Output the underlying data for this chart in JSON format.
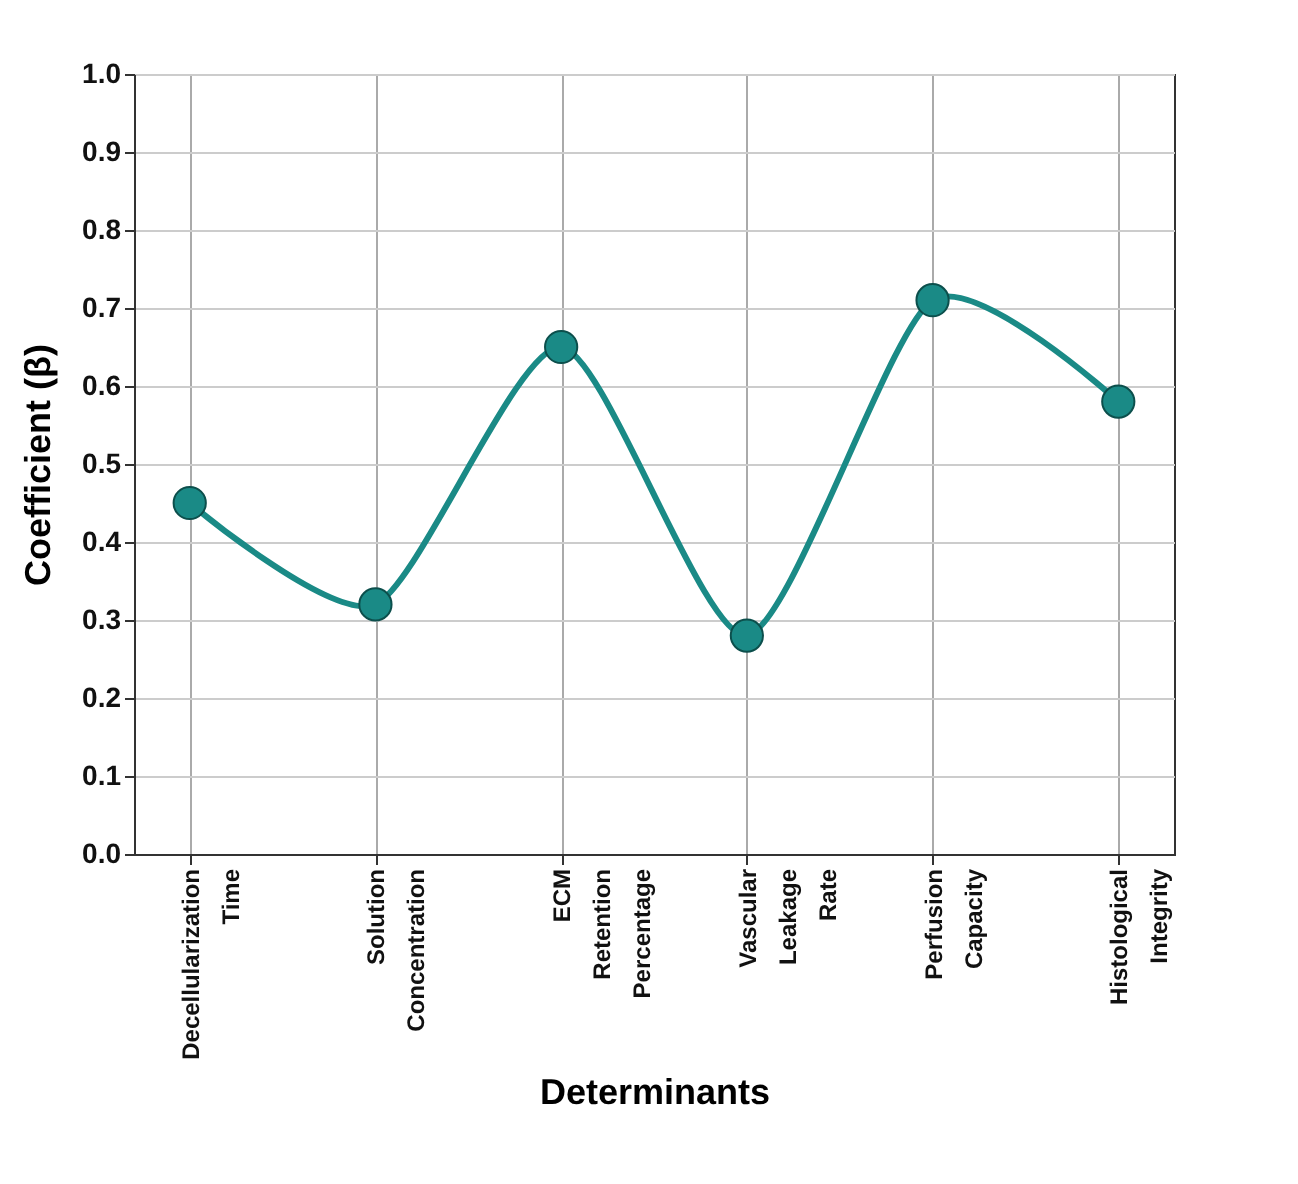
{
  "chart_data": {
    "type": "line",
    "xlabel": "Determinants",
    "ylabel": "Coefficient (β)",
    "categories": [
      "Decellularization Time",
      "Solution Concentration",
      "ECM Retention Percentage",
      "Vascular Leakage Rate",
      "Perfusion Capacity",
      "Histological Integrity"
    ],
    "series": [
      {
        "color": "#1a8a86",
        "values": [
          0.45,
          0.32,
          0.65,
          0.28,
          0.71,
          0.58
        ]
      }
    ],
    "ylim": [
      0,
      1
    ],
    "yticks": [
      {
        "value": 0,
        "label": "0.0"
      },
      {
        "value": 0.1,
        "label": "0.1"
      },
      {
        "value": 0.2,
        "label": "0.2"
      },
      {
        "value": 0.3,
        "label": "0.3"
      },
      {
        "value": 0.4,
        "label": "0.4"
      },
      {
        "value": 0.5,
        "label": "0.5"
      },
      {
        "value": 0.6,
        "label": "0.6"
      },
      {
        "value": 0.7,
        "label": "0.7"
      },
      {
        "value": 0.8,
        "label": "0.8"
      },
      {
        "value": 0.9,
        "label": "0.9"
      },
      {
        "value": 1,
        "label": "1.0"
      }
    ],
    "grid": true,
    "marker": "circle",
    "line_style": "solid"
  }
}
